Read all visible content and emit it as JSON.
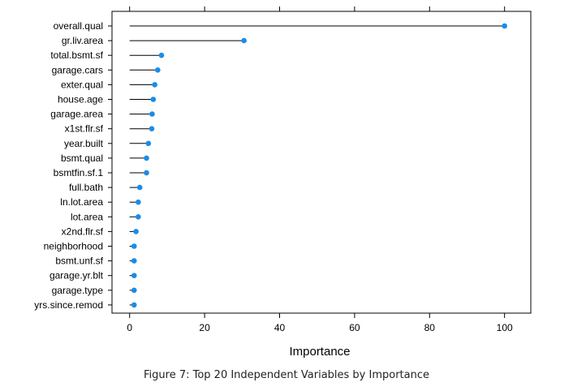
{
  "caption": "Figure 7: Top 20 Independent Variables by Importance",
  "chart_data": {
    "type": "lollipop",
    "categories": [
      "overall.qual",
      "gr.liv.area",
      "total.bsmt.sf",
      "garage.cars",
      "exter.qual",
      "house.age",
      "garage.area",
      "x1st.flr.sf",
      "year.built",
      "bsmt.qual",
      "bsmtfin.sf.1",
      "full.bath",
      "ln.lot.area",
      "lot.area",
      "x2nd.flr.sf",
      "neighborhood",
      "bsmt.unf.sf",
      "garage.yr.blt",
      "garage.type",
      "yrs.since.remod"
    ],
    "values": [
      100,
      30.5,
      8.5,
      7.5,
      6.7,
      6.3,
      6.0,
      5.9,
      5.0,
      4.5,
      4.5,
      2.7,
      2.3,
      2.3,
      1.7,
      1.2,
      1.2,
      1.2,
      1.2,
      1.2
    ],
    "xticks": [
      0,
      20,
      40,
      60,
      80,
      100
    ],
    "xlim": [
      -4.7,
      107
    ],
    "xlabel": "Importance",
    "ylabel": "",
    "title": "",
    "grid": false,
    "marker_color": "#1a8ce8"
  }
}
